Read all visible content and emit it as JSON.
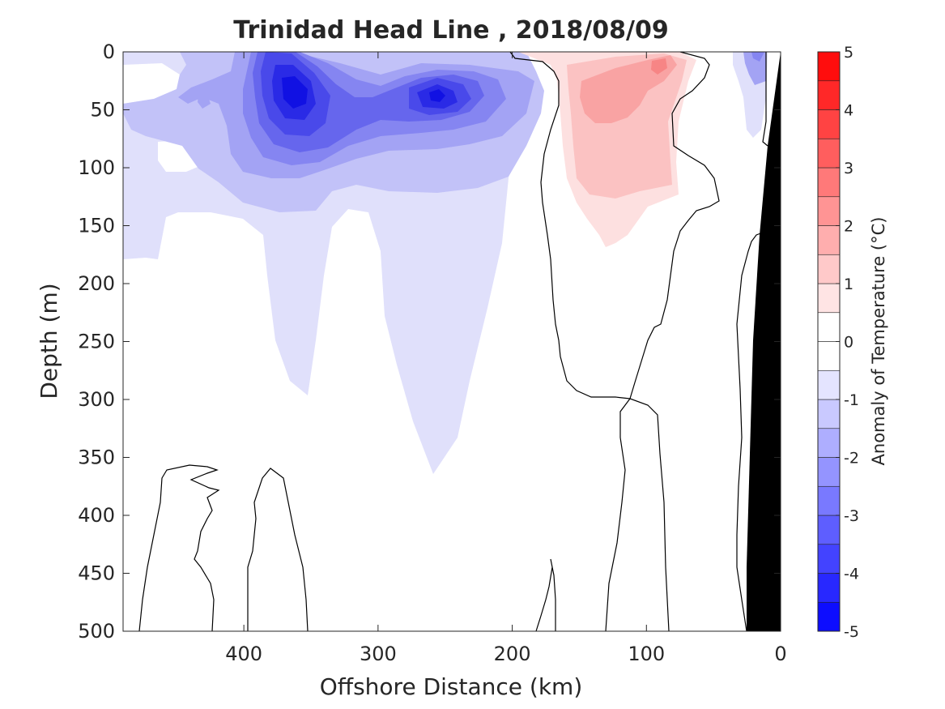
{
  "chart_data": {
    "type": "contour",
    "title": "Trinidad Head Line , 2018/08/09",
    "xlabel": "Offshore Distance (km)",
    "ylabel": "Depth (m)",
    "xlim": [
      490,
      0
    ],
    "ylim": [
      0,
      500
    ],
    "x_ticks": [
      400,
      300,
      200,
      100,
      0
    ],
    "y_ticks": [
      0,
      50,
      100,
      150,
      200,
      250,
      300,
      350,
      400,
      450,
      500
    ],
    "x_tick_labels": [
      "400",
      "300",
      "200",
      "100",
      "0"
    ],
    "y_tick_labels": [
      "0",
      "50",
      "100",
      "150",
      "200",
      "250",
      "300",
      "350",
      "400",
      "450",
      "500"
    ],
    "colorbar": {
      "label": "Anomaly of Temperature (°C)",
      "range": [
        -5,
        5
      ],
      "step": 0.5,
      "ticks": [
        5,
        4,
        3,
        2,
        1,
        0,
        -1,
        -2,
        -3,
        -4,
        -5
      ],
      "tick_labels": [
        "5",
        "4",
        "3",
        "2",
        "1",
        "0",
        "-1",
        "-2",
        "-3",
        "-4",
        "-5"
      ]
    },
    "zero_contour_color": "#000000",
    "bathymetry_color": "#000000",
    "cold_core_color": "#0000ff",
    "warm_core_color": "#ff0000",
    "regions": [
      {
        "name": "offshore cold anomaly",
        "distance_km": [
          490,
          210
        ],
        "depth_m": [
          0,
          370
        ],
        "min_anomaly": -4.0
      },
      {
        "name": "cold core 1",
        "center_km": 358,
        "center_depth_m": 35,
        "anomaly": -4.0
      },
      {
        "name": "cold core 2",
        "center_km": 258,
        "center_depth_m": 35,
        "anomaly": -3.5
      },
      {
        "name": "warm anomaly",
        "distance_km": [
          180,
          75
        ],
        "depth_m": [
          0,
          170
        ],
        "max_anomaly": 2.0
      },
      {
        "name": "nearshore cold anomaly",
        "distance_km": [
          45,
          10
        ],
        "depth_m": [
          0,
          100
        ],
        "min_anomaly": -2.0
      }
    ]
  }
}
